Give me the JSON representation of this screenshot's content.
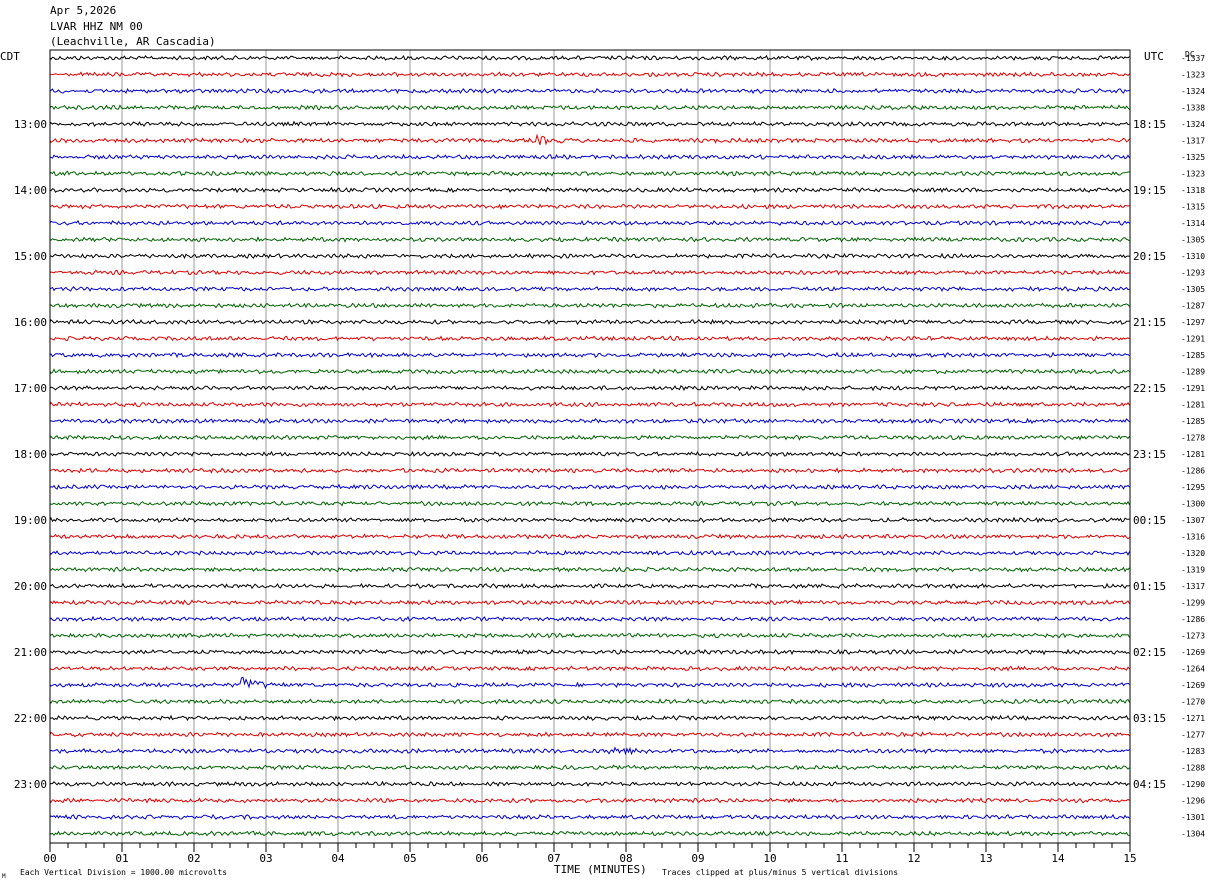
{
  "header": {
    "date": "Apr 5,2026",
    "station": "LVAR HHZ NM 00",
    "location": "(Leachville, AR Cascadia)"
  },
  "labels": {
    "left_tz": "CDT",
    "right_tz": "UTC",
    "dc": "DC",
    "x_axis": "TIME (MINUTES)",
    "footer_left": "Each Vertical Division = 1000.00 microvolts",
    "footer_right": "Traces clipped at plus/minus 5 vertical divisions",
    "footer_mark": "M"
  },
  "colors": {
    "trace_cycle": [
      "#000000",
      "#e00000",
      "#0000d0",
      "#006400"
    ],
    "grid": "#808080",
    "frame": "#000000"
  },
  "chart_data": {
    "type": "line",
    "title": "LVAR HHZ NM 00",
    "xlabel": "TIME (MINUTES)",
    "xlim": [
      0,
      15
    ],
    "x_ticks": [
      "00",
      "01",
      "02",
      "03",
      "04",
      "05",
      "06",
      "07",
      "08",
      "09",
      "10",
      "11",
      "12",
      "13",
      "14",
      "15"
    ],
    "trace_minutes": 15,
    "left_hour_labels": [
      "13:00",
      "14:00",
      "15:00",
      "16:00",
      "17:00",
      "18:00",
      "19:00",
      "20:00",
      "21:00",
      "22:00",
      "23:00"
    ],
    "right_hour_labels": [
      "18:15",
      "19:15",
      "20:15",
      "21:15",
      "22:15",
      "23:15",
      "00:15",
      "01:15",
      "02:15",
      "03:15",
      "04:15"
    ],
    "dc_offsets": [
      -1337,
      -1323,
      -1324,
      -1338,
      -1324,
      -1317,
      -1325,
      -1323,
      -1318,
      -1315,
      -1314,
      -1305,
      -1310,
      -1293,
      -1305,
      -1287,
      -1297,
      -1291,
      -1285,
      -1289,
      -1291,
      -1281,
      -1285,
      -1278,
      -1281,
      -1286,
      -1295,
      -1300,
      -1307,
      -1316,
      -1320,
      -1319,
      -1317,
      -1299,
      -1286,
      -1273,
      -1269,
      -1264,
      -1269,
      -1270,
      -1271,
      -1277,
      -1283,
      -1288,
      -1290,
      -1296,
      -1301,
      -1304
    ],
    "events": [
      {
        "trace": 38,
        "minute": 2.7,
        "amplitude": 2.5
      },
      {
        "trace": 42,
        "minute": 7.8,
        "amplitude": 1.5
      },
      {
        "trace": 5,
        "minute": 6.8,
        "amplitude": 1.2
      }
    ]
  }
}
